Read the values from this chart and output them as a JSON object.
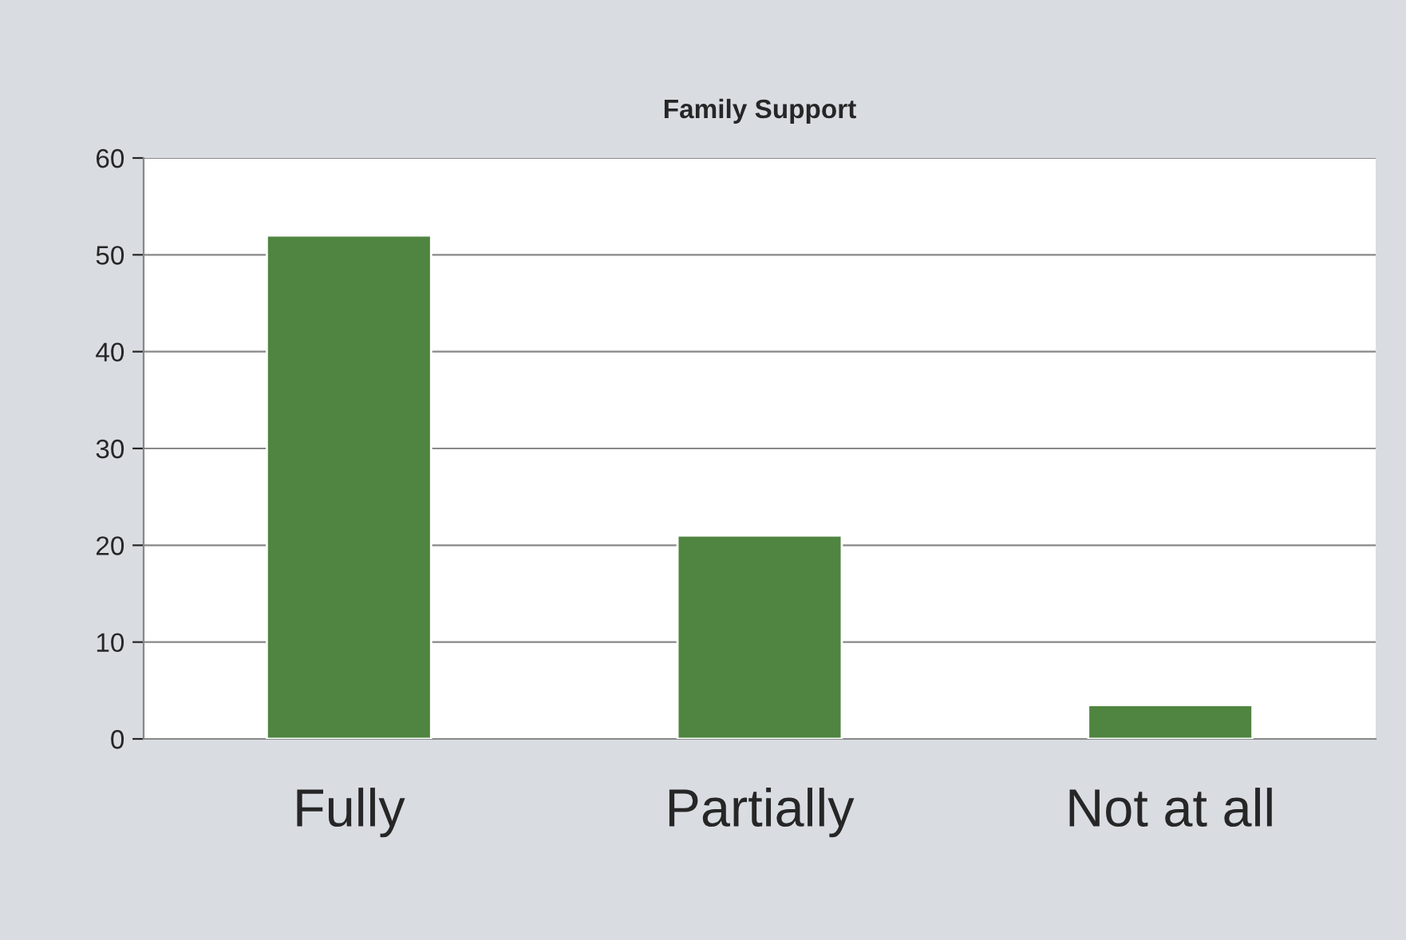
{
  "chart_data": {
    "type": "bar",
    "title": "Family Support",
    "categories": [
      "Fully",
      "Partially",
      "Not at all"
    ],
    "values": [
      52,
      21,
      3.5
    ],
    "color": "#4f8540",
    "ylim": [
      0,
      60
    ],
    "yticks": [
      0,
      10,
      20,
      30,
      40,
      50,
      60
    ],
    "grid": "y",
    "legend": false
  }
}
